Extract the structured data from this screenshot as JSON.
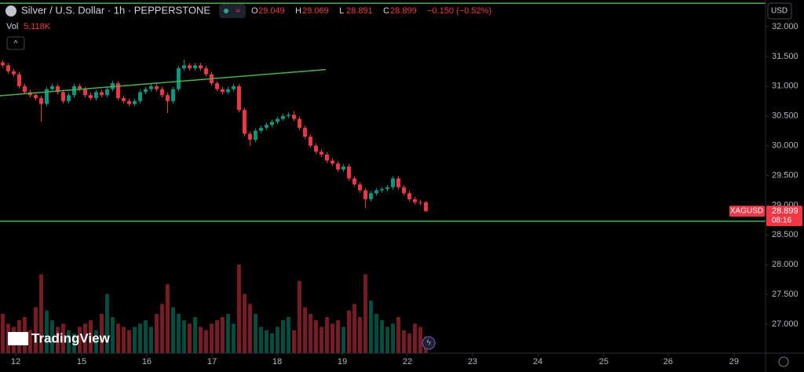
{
  "chart_data": {
    "type": "candlestick",
    "title": "Silver / U.S. Dollar · 1h · PEPPERSTONE",
    "currency": "USD",
    "ohlc_labels": [
      "O",
      "H",
      "L",
      "C"
    ],
    "change": "−0.150 (−0.52%)",
    "volume_title": "Vol",
    "volume_label": "5.118K",
    "symbol_tag": "XAGUSD",
    "countdown": "08:16",
    "watermark": "TradingView",
    "up_color": "#089981",
    "down_color": "#f23645",
    "open": [
      31.4,
      31.35,
      31.25,
      31.2,
      31.0,
      30.9,
      30.85,
      30.8,
      30.7,
      30.95,
      31.0,
      30.9,
      30.75,
      30.85,
      31.0,
      30.95,
      30.85,
      30.8,
      30.9,
      30.85,
      30.95,
      31.05,
      30.8,
      30.75,
      30.7,
      30.75,
      30.9,
      30.95,
      31.0,
      30.95,
      30.85,
      30.75,
      30.95,
      31.3,
      31.35,
      31.3,
      31.35,
      31.3,
      31.2,
      31.05,
      30.95,
      30.9,
      30.95,
      31.0,
      30.6,
      30.2,
      30.1,
      30.25,
      30.3,
      30.35,
      30.4,
      30.45,
      30.5,
      30.52,
      30.45,
      30.3,
      30.15,
      30.0,
      29.9,
      29.85,
      29.75,
      29.7,
      29.6,
      29.65,
      29.45,
      29.35,
      29.25,
      29.1,
      29.2,
      29.25,
      29.27,
      29.3,
      29.45,
      29.3,
      29.2,
      29.1,
      29.05,
      29.049
    ],
    "high": [
      31.44,
      31.39,
      31.29,
      31.24,
      31.04,
      30.94,
      30.89,
      30.84,
      30.99,
      31.04,
      31.04,
      30.94,
      30.89,
      31.04,
      31.04,
      30.99,
      30.89,
      30.94,
      30.94,
      30.99,
      31.09,
      31.09,
      30.84,
      30.79,
      30.79,
      30.94,
      30.99,
      31.04,
      31.04,
      30.99,
      30.89,
      30.99,
      31.34,
      31.45,
      31.39,
      31.39,
      31.39,
      31.34,
      31.24,
      31.09,
      30.99,
      30.99,
      31.04,
      31.04,
      30.64,
      30.24,
      30.29,
      30.34,
      30.39,
      30.44,
      30.49,
      30.54,
      30.56,
      30.58,
      30.49,
      30.34,
      30.19,
      30.04,
      29.94,
      29.89,
      29.79,
      29.74,
      29.69,
      29.69,
      29.49,
      29.39,
      29.29,
      29.24,
      29.29,
      29.31,
      29.34,
      29.49,
      29.49,
      29.34,
      29.24,
      29.14,
      29.09,
      29.069
    ],
    "low": [
      31.31,
      31.21,
      31.16,
      30.96,
      30.86,
      30.81,
      30.76,
      30.4,
      30.66,
      30.91,
      30.86,
      30.71,
      30.71,
      30.81,
      30.91,
      30.81,
      30.76,
      30.76,
      30.81,
      30.81,
      30.91,
      30.76,
      30.71,
      30.66,
      30.66,
      30.71,
      30.86,
      30.91,
      30.91,
      30.81,
      30.55,
      30.71,
      30.91,
      31.26,
      31.26,
      31.26,
      31.26,
      31.16,
      31.01,
      30.91,
      30.86,
      30.86,
      30.91,
      30.56,
      30.16,
      30.0,
      30.06,
      30.21,
      30.26,
      30.31,
      30.36,
      30.41,
      30.46,
      30.41,
      30.26,
      30.11,
      29.96,
      29.86,
      29.81,
      29.71,
      29.66,
      29.56,
      29.56,
      29.41,
      29.31,
      29.21,
      28.95,
      29.06,
      29.16,
      29.21,
      29.23,
      29.26,
      29.26,
      29.16,
      29.06,
      29.01,
      29.0,
      28.891
    ],
    "close": [
      31.35,
      31.25,
      31.2,
      31.0,
      30.9,
      30.85,
      30.8,
      30.7,
      30.95,
      31.0,
      30.9,
      30.75,
      30.85,
      31.0,
      30.95,
      30.85,
      30.8,
      30.9,
      30.85,
      30.95,
      31.05,
      30.8,
      30.75,
      30.7,
      30.75,
      30.9,
      30.95,
      31.0,
      30.95,
      30.85,
      30.75,
      30.95,
      31.3,
      31.35,
      31.3,
      31.35,
      31.3,
      31.2,
      31.05,
      30.95,
      30.9,
      30.95,
      31.0,
      30.6,
      30.2,
      30.1,
      30.25,
      30.3,
      30.35,
      30.4,
      30.45,
      30.5,
      30.52,
      30.45,
      30.3,
      30.15,
      30.0,
      29.9,
      29.85,
      29.75,
      29.7,
      29.6,
      29.65,
      29.45,
      29.35,
      29.25,
      29.1,
      29.2,
      29.25,
      29.27,
      29.3,
      29.45,
      29.3,
      29.2,
      29.1,
      29.05,
      29.049,
      28.899
    ],
    "volume": [
      12,
      9,
      8,
      10,
      11,
      7,
      14,
      24,
      13,
      10,
      8,
      9,
      7,
      6,
      8,
      9,
      10,
      7,
      12,
      18,
      11,
      9,
      8,
      7,
      8,
      9,
      10,
      8,
      12,
      15,
      21,
      14,
      12,
      10,
      9,
      11,
      8,
      7,
      9,
      10,
      11,
      12,
      9,
      27,
      18,
      15,
      12,
      8,
      7,
      6,
      8,
      10,
      11,
      7,
      22,
      14,
      12,
      10,
      8,
      11,
      9,
      10,
      8,
      13,
      15,
      11,
      24,
      16,
      12,
      10,
      8,
      9,
      11,
      7,
      6,
      9,
      8,
      5.118
    ],
    "xlim": [
      -0.5,
      138.8
    ],
    "xticks": [
      {
        "value": 2.36,
        "label": "12"
      },
      {
        "value": 14.36,
        "label": "15"
      },
      {
        "value": 26.21,
        "label": "16"
      },
      {
        "value": 38.07,
        "label": "17"
      },
      {
        "value": 49.93,
        "label": "18"
      },
      {
        "value": 61.79,
        "label": "19"
      },
      {
        "value": 73.64,
        "label": "22"
      },
      {
        "value": 85.5,
        "label": "23"
      },
      {
        "value": 97.36,
        "label": "24"
      },
      {
        "value": 109.36,
        "label": "25"
      },
      {
        "value": 121.07,
        "label": "26"
      },
      {
        "value": 133.07,
        "label": "29"
      }
    ],
    "ylim": [
      26.512,
      32.449
    ],
    "yticks": [
      {
        "value": 27,
        "label": "27.000"
      },
      {
        "value": 27.5,
        "label": "27.500"
      },
      {
        "value": 28,
        "label": "28.000"
      },
      {
        "value": 28.5,
        "label": "28.500"
      },
      {
        "value": 29,
        "label": "29.000"
      },
      {
        "value": 29.5,
        "label": "29.500"
      },
      {
        "value": 30,
        "label": "30.000"
      },
      {
        "value": 30.5,
        "label": "30.500"
      },
      {
        "value": 31,
        "label": "31.000"
      },
      {
        "value": 31.5,
        "label": "31.500"
      },
      {
        "value": 32,
        "label": "32.000"
      }
    ],
    "drawing_color": "#4caf50",
    "hlines": [
      32.395,
      28.73
    ],
    "trendline": {
      "x": [
        -0.5,
        58.8
      ],
      "price": [
        30.84,
        31.28
      ]
    }
  }
}
